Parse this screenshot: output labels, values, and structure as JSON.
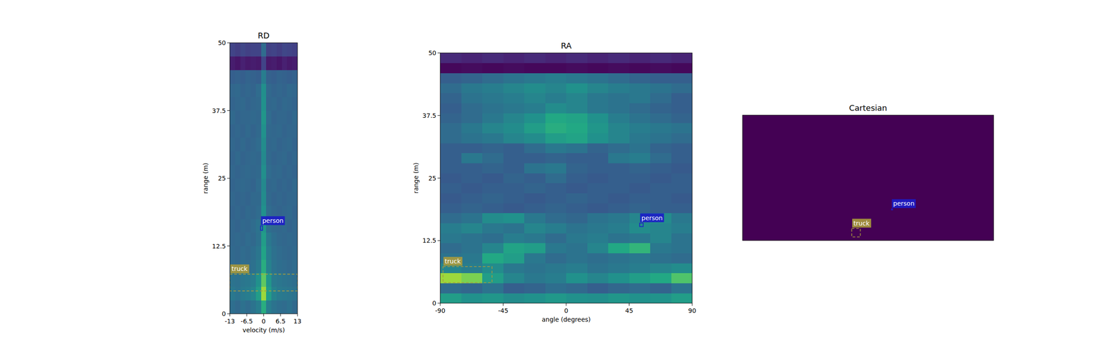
{
  "chart_data": [
    {
      "type": "heatmap",
      "title": "RD",
      "xlabel": "velocity (m/s)",
      "ylabel": "range (m)",
      "xlim": [
        -13,
        13
      ],
      "ylim": [
        0,
        50
      ],
      "xticks": [
        -13,
        -6.5,
        0,
        6.5,
        13
      ],
      "yticks": [
        0,
        12.5,
        25,
        37.5,
        50
      ],
      "zlim": [
        0,
        1
      ],
      "cells": [
        [
          0.36,
          0.34,
          0.37,
          0.35,
          0.38,
          0.42,
          0.62,
          0.42,
          0.38,
          0.36,
          0.35,
          0.37,
          0.34
        ],
        [
          0.4,
          0.38,
          0.41,
          0.42,
          0.45,
          0.55,
          0.85,
          0.55,
          0.44,
          0.41,
          0.4,
          0.39,
          0.38
        ],
        [
          0.38,
          0.37,
          0.39,
          0.4,
          0.42,
          0.5,
          0.75,
          0.52,
          0.41,
          0.39,
          0.38,
          0.37,
          0.36
        ],
        [
          0.35,
          0.34,
          0.36,
          0.35,
          0.37,
          0.41,
          0.62,
          0.44,
          0.38,
          0.36,
          0.35,
          0.34,
          0.35
        ],
        [
          0.34,
          0.33,
          0.35,
          0.34,
          0.36,
          0.39,
          0.58,
          0.42,
          0.37,
          0.35,
          0.34,
          0.33,
          0.34
        ],
        [
          0.33,
          0.34,
          0.33,
          0.35,
          0.34,
          0.37,
          0.55,
          0.4,
          0.36,
          0.34,
          0.33,
          0.34,
          0.33
        ],
        [
          0.33,
          0.32,
          0.34,
          0.33,
          0.35,
          0.38,
          0.52,
          0.36,
          0.34,
          0.33,
          0.34,
          0.32,
          0.33
        ],
        [
          0.32,
          0.33,
          0.32,
          0.34,
          0.33,
          0.35,
          0.5,
          0.35,
          0.33,
          0.32,
          0.33,
          0.34,
          0.32
        ],
        [
          0.33,
          0.32,
          0.33,
          0.32,
          0.34,
          0.34,
          0.48,
          0.34,
          0.32,
          0.33,
          0.32,
          0.33,
          0.33
        ],
        [
          0.32,
          0.33,
          0.34,
          0.33,
          0.32,
          0.35,
          0.47,
          0.33,
          0.34,
          0.32,
          0.33,
          0.32,
          0.34
        ],
        [
          0.33,
          0.32,
          0.33,
          0.34,
          0.33,
          0.34,
          0.49,
          0.35,
          0.33,
          0.34,
          0.32,
          0.33,
          0.32
        ],
        [
          0.32,
          0.34,
          0.32,
          0.33,
          0.34,
          0.33,
          0.47,
          0.34,
          0.32,
          0.33,
          0.34,
          0.32,
          0.33
        ],
        [
          0.33,
          0.32,
          0.34,
          0.32,
          0.33,
          0.35,
          0.48,
          0.33,
          0.34,
          0.32,
          0.33,
          0.34,
          0.32
        ],
        [
          0.32,
          0.33,
          0.32,
          0.34,
          0.32,
          0.34,
          0.5,
          0.34,
          0.33,
          0.34,
          0.32,
          0.33,
          0.33
        ],
        [
          0.34,
          0.32,
          0.33,
          0.33,
          0.34,
          0.33,
          0.52,
          0.35,
          0.32,
          0.33,
          0.33,
          0.32,
          0.34
        ],
        [
          0.32,
          0.33,
          0.34,
          0.32,
          0.33,
          0.34,
          0.5,
          0.33,
          0.34,
          0.32,
          0.34,
          0.33,
          0.32
        ],
        [
          0.33,
          0.34,
          0.32,
          0.33,
          0.32,
          0.35,
          0.49,
          0.34,
          0.32,
          0.33,
          0.32,
          0.34,
          0.33
        ],
        [
          0.3,
          0.31,
          0.3,
          0.32,
          0.31,
          0.3,
          0.42,
          0.31,
          0.3,
          0.32,
          0.31,
          0.3,
          0.31
        ],
        [
          0.08,
          0.06,
          0.09,
          0.07,
          0.08,
          0.07,
          0.2,
          0.07,
          0.08,
          0.06,
          0.09,
          0.07,
          0.08
        ],
        [
          0.2,
          0.18,
          0.21,
          0.19,
          0.2,
          0.2,
          0.35,
          0.19,
          0.2,
          0.18,
          0.21,
          0.2,
          0.19
        ]
      ],
      "boxes": [
        {
          "label": "truck",
          "x": [
            -13,
            13
          ],
          "y": [
            4.2,
            7.3
          ],
          "color": "#a89a3c",
          "line_style": "dashed"
        },
        {
          "label": "person",
          "x": [
            -1.2,
            -0.4
          ],
          "y": [
            15.4,
            16.2
          ],
          "color": "#1c1cc8",
          "line_style": "solid"
        }
      ]
    },
    {
      "type": "heatmap",
      "title": "RA",
      "xlabel": "angle (degrees)",
      "ylabel": "range (m)",
      "xlim": [
        -90,
        90
      ],
      "ylim": [
        0,
        50
      ],
      "xticks": [
        -90,
        -45,
        0,
        45,
        90
      ],
      "yticks": [
        0,
        12.5,
        25,
        37.5,
        50
      ],
      "zlim": [
        0,
        1
      ],
      "cells": [
        [
          0.55,
          0.5,
          0.52,
          0.48,
          0.5,
          0.53,
          0.5,
          0.49,
          0.52,
          0.5,
          0.51,
          0.55
        ],
        [
          0.35,
          0.33,
          0.38,
          0.3,
          0.32,
          0.36,
          0.34,
          0.3,
          0.33,
          0.35,
          0.32,
          0.38
        ],
        [
          0.85,
          0.8,
          0.55,
          0.45,
          0.4,
          0.42,
          0.5,
          0.45,
          0.5,
          0.55,
          0.6,
          0.72
        ],
        [
          0.45,
          0.42,
          0.48,
          0.4,
          0.38,
          0.4,
          0.42,
          0.38,
          0.4,
          0.42,
          0.45,
          0.48
        ],
        [
          0.38,
          0.4,
          0.6,
          0.55,
          0.4,
          0.35,
          0.38,
          0.36,
          0.38,
          0.4,
          0.37,
          0.35
        ],
        [
          0.35,
          0.38,
          0.45,
          0.58,
          0.55,
          0.4,
          0.38,
          0.45,
          0.6,
          0.65,
          0.4,
          0.38
        ],
        [
          0.4,
          0.38,
          0.36,
          0.42,
          0.4,
          0.35,
          0.4,
          0.42,
          0.38,
          0.4,
          0.45,
          0.38
        ],
        [
          0.42,
          0.45,
          0.4,
          0.38,
          0.45,
          0.42,
          0.38,
          0.4,
          0.42,
          0.48,
          0.45,
          0.42
        ],
        [
          0.35,
          0.38,
          0.48,
          0.5,
          0.4,
          0.35,
          0.33,
          0.38,
          0.4,
          0.45,
          0.48,
          0.4
        ],
        [
          0.3,
          0.32,
          0.3,
          0.28,
          0.3,
          0.32,
          0.3,
          0.28,
          0.3,
          0.32,
          0.3,
          0.3
        ],
        [
          0.28,
          0.3,
          0.32,
          0.3,
          0.28,
          0.3,
          0.32,
          0.3,
          0.28,
          0.3,
          0.3,
          0.28
        ],
        [
          0.3,
          0.28,
          0.3,
          0.3,
          0.32,
          0.3,
          0.28,
          0.3,
          0.3,
          0.28,
          0.3,
          0.3
        ],
        [
          0.28,
          0.3,
          0.28,
          0.32,
          0.3,
          0.35,
          0.3,
          0.28,
          0.3,
          0.3,
          0.28,
          0.3
        ],
        [
          0.3,
          0.3,
          0.32,
          0.3,
          0.38,
          0.4,
          0.32,
          0.3,
          0.3,
          0.32,
          0.3,
          0.28
        ],
        [
          0.3,
          0.4,
          0.35,
          0.3,
          0.3,
          0.32,
          0.3,
          0.3,
          0.4,
          0.42,
          0.35,
          0.3
        ],
        [
          0.3,
          0.3,
          0.32,
          0.3,
          0.35,
          0.4,
          0.38,
          0.32,
          0.35,
          0.38,
          0.32,
          0.3
        ],
        [
          0.35,
          0.38,
          0.4,
          0.45,
          0.48,
          0.55,
          0.58,
          0.5,
          0.45,
          0.4,
          0.38,
          0.35
        ],
        [
          0.35,
          0.4,
          0.45,
          0.48,
          0.55,
          0.62,
          0.6,
          0.52,
          0.45,
          0.42,
          0.4,
          0.38
        ],
        [
          0.32,
          0.35,
          0.4,
          0.45,
          0.5,
          0.6,
          0.58,
          0.5,
          0.42,
          0.38,
          0.35,
          0.32
        ],
        [
          0.3,
          0.35,
          0.38,
          0.4,
          0.42,
          0.48,
          0.45,
          0.4,
          0.38,
          0.35,
          0.32,
          0.3
        ],
        [
          0.32,
          0.38,
          0.4,
          0.42,
          0.45,
          0.42,
          0.45,
          0.4,
          0.38,
          0.4,
          0.35,
          0.3
        ],
        [
          0.35,
          0.4,
          0.42,
          0.45,
          0.48,
          0.45,
          0.5,
          0.45,
          0.42,
          0.4,
          0.38,
          0.35
        ],
        [
          0.3,
          0.32,
          0.35,
          0.38,
          0.4,
          0.42,
          0.4,
          0.38,
          0.35,
          0.32,
          0.3,
          0.3
        ],
        [
          0.02,
          0.03,
          0.02,
          0.03,
          0.02,
          0.02,
          0.03,
          0.02,
          0.03,
          0.02,
          0.03,
          0.02
        ],
        [
          0.12,
          0.1,
          0.12,
          0.1,
          0.12,
          0.1,
          0.12,
          0.1,
          0.12,
          0.1,
          0.12,
          0.1
        ]
      ],
      "boxes": [
        {
          "label": "truck",
          "x": [
            -88,
            -53
          ],
          "y": [
            4.1,
            7.3
          ],
          "color": "#a89a3c",
          "line_style": "dashed"
        },
        {
          "label": "person",
          "x": [
            52.5,
            55
          ],
          "y": [
            15.3,
            16.0
          ],
          "color": "#1c1cc8",
          "line_style": "solid"
        }
      ]
    },
    {
      "type": "heatmap",
      "title": "Cartesian",
      "tick_labels": false,
      "xlim": [
        -50,
        50
      ],
      "ylim": [
        0,
        50
      ],
      "zlim": [
        0,
        1
      ],
      "cells": [
        [
          0
        ]
      ],
      "boxes": [
        {
          "label": "truck",
          "x": [
            -6.5,
            -3.1
          ],
          "y": [
            1.4,
            4.8
          ],
          "color": "#a89a3c",
          "line_style": "dashed"
        },
        {
          "label": "person",
          "x": [
            9.3,
            9.8
          ],
          "y": [
            12.2,
            12.6
          ],
          "color": "#1c1cc8",
          "line_style": "solid"
        }
      ]
    }
  ]
}
